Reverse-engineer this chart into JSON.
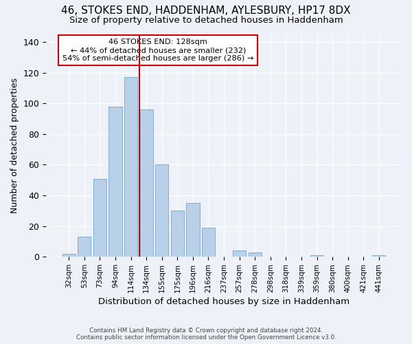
{
  "title1": "46, STOKES END, HADDENHAM, AYLESBURY, HP17 8DX",
  "title2": "Size of property relative to detached houses in Haddenham",
  "xlabel": "Distribution of detached houses by size in Haddenham",
  "ylabel": "Number of detached properties",
  "categories": [
    "32sqm",
    "53sqm",
    "73sqm",
    "94sqm",
    "114sqm",
    "134sqm",
    "155sqm",
    "175sqm",
    "196sqm",
    "216sqm",
    "237sqm",
    "257sqm",
    "278sqm",
    "298sqm",
    "318sqm",
    "339sqm",
    "359sqm",
    "380sqm",
    "400sqm",
    "421sqm",
    "441sqm"
  ],
  "values": [
    2,
    13,
    51,
    98,
    117,
    96,
    60,
    30,
    35,
    19,
    0,
    4,
    3,
    0,
    0,
    0,
    1,
    0,
    0,
    0,
    1
  ],
  "bar_color": "#b8d0e8",
  "bar_edge_color": "#7aafd4",
  "vline_x": 4.57,
  "vline_color": "#cc0000",
  "annotation_line1": "46 STOKES END: 128sqm",
  "annotation_line2": "← 44% of detached houses are smaller (232)",
  "annotation_line3": "54% of semi-detached houses are larger (286) →",
  "annotation_box_edge": "#cc0000",
  "ylim": [
    0,
    145
  ],
  "yticks": [
    0,
    20,
    40,
    60,
    80,
    100,
    120,
    140
  ],
  "footer1": "Contains HM Land Registry data © Crown copyright and database right 2024.",
  "footer2": "Contains public sector information licensed under the Open Government Licence v3.0.",
  "bg_color": "#eef2f8",
  "plot_bg_color": "#eef2f8"
}
